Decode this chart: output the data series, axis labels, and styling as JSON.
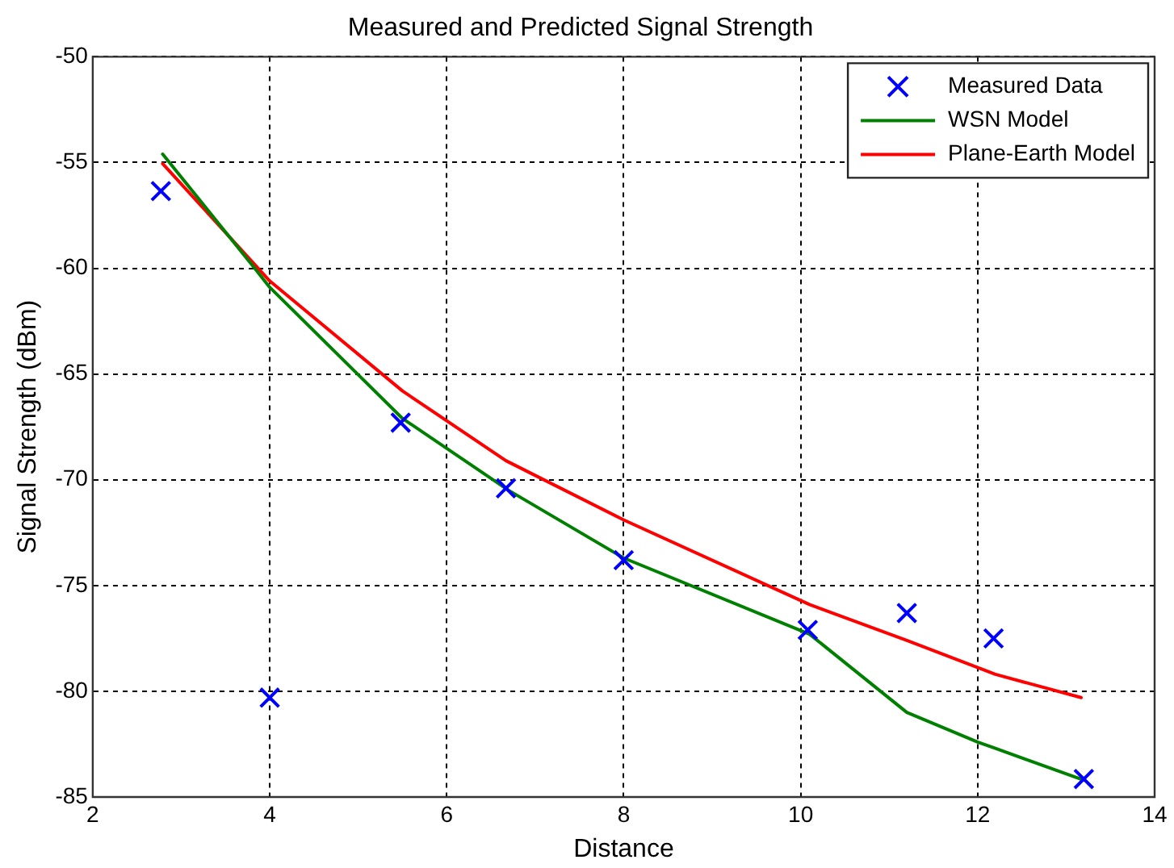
{
  "chart_data": {
    "type": "line",
    "title": "Measured and Predicted Signal Strength",
    "xlabel": "Distance",
    "ylabel": "Signal Strength (dBm)",
    "xlim": [
      2,
      14
    ],
    "xticks": [
      2,
      4,
      6,
      8,
      10,
      12,
      14
    ],
    "ylim": [
      -85,
      -50
    ],
    "yticks": [
      -85,
      -80,
      -75,
      -70,
      -65,
      -60,
      -55,
      -50
    ],
    "grid": true,
    "legend": "top right",
    "series": [
      {
        "name": "Measured Data",
        "type": "scatter",
        "marker": "cross",
        "color": "#0000ff",
        "x": [
          2.77,
          4.0,
          5.48,
          6.67,
          8.0,
          10.08,
          11.2,
          12.18,
          13.2
        ],
        "values": [
          -56.35,
          -80.3,
          -67.3,
          -70.4,
          -73.8,
          -77.1,
          -76.3,
          -77.5,
          -84.15
        ]
      },
      {
        "name": "WSN Model",
        "type": "line",
        "color": "#008000",
        "x": [
          2.79,
          3.83,
          4.0,
          5.5,
          6.7,
          8.0,
          10.1,
          11.2,
          12.0,
          12.2,
          13.2
        ],
        "values": [
          -54.6,
          -60.0,
          -60.9,
          -67.1,
          -70.5,
          -73.7,
          -77.3,
          -81.0,
          -82.4,
          -82.7,
          -84.2
        ]
      },
      {
        "name": "Plane-Earth Model",
        "type": "line",
        "color": "#ff0000",
        "x": [
          2.79,
          4.0,
          5.5,
          6.67,
          8.0,
          10.1,
          11.2,
          12.2,
          13.17
        ],
        "values": [
          -55.05,
          -60.6,
          -65.8,
          -69.1,
          -71.9,
          -75.9,
          -77.6,
          -79.2,
          -80.3
        ]
      }
    ]
  }
}
